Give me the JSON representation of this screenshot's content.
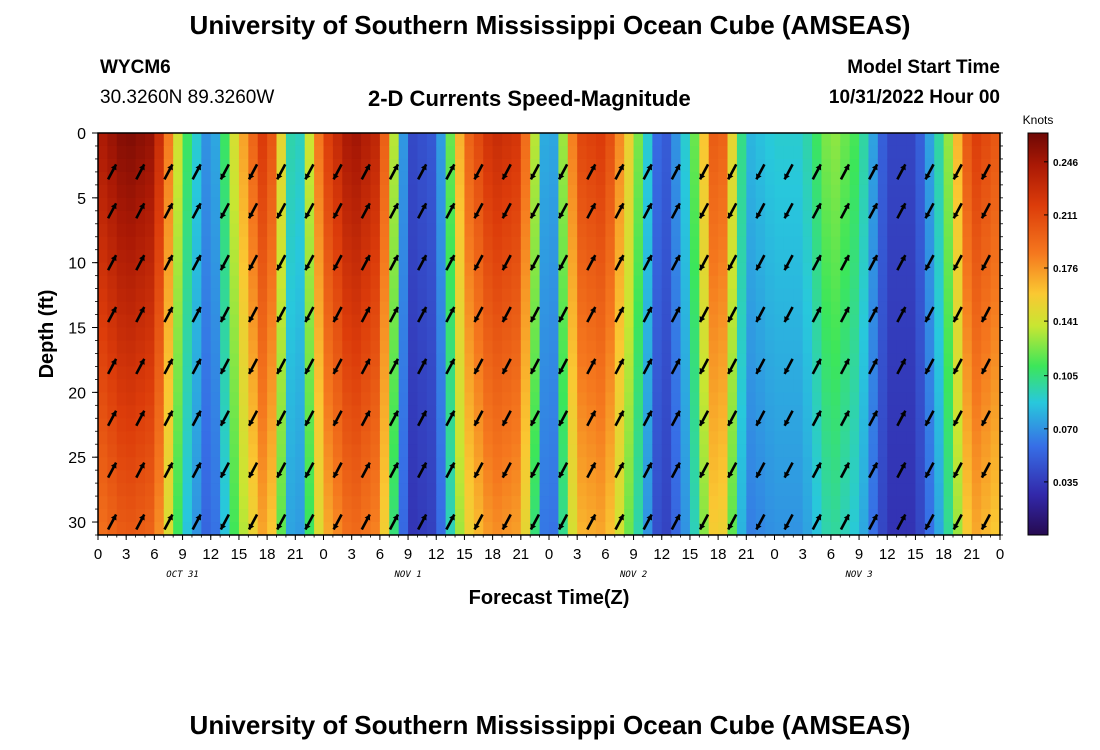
{
  "header": {
    "title": "University of Southern Mississippi Ocean Cube (AMSEAS)",
    "station_id": "WYCM6",
    "station_coords": "30.3260N  89.3260W",
    "plot_title": "2-D Currents Speed-Magnitude",
    "model_start_label": "Model Start Time",
    "model_start_value": "10/31/2022 Hour 00",
    "footer_title": "University of Southern Mississippi Ocean Cube (AMSEAS)"
  },
  "chart_data": {
    "type": "heatmap",
    "title": "2-D Currents Speed-Magnitude",
    "xlabel": "Forecast Time(Z)",
    "ylabel": "Depth (ft)",
    "x_tick_labels": [
      "0",
      "3",
      "6",
      "9",
      "12",
      "15",
      "18",
      "21",
      "0",
      "3",
      "6",
      "9",
      "12",
      "15",
      "18",
      "21",
      "0",
      "3",
      "6",
      "9",
      "12",
      "15",
      "18",
      "21",
      "0",
      "3",
      "6",
      "9",
      "12",
      "15",
      "18",
      "21",
      "0"
    ],
    "x_range_hours": [
      0,
      96
    ],
    "day_labels": [
      "OCT 31",
      "NOV 1",
      "NOV 2",
      "NOV 3"
    ],
    "y_ticks": [
      0,
      5,
      10,
      15,
      20,
      25,
      30
    ],
    "y_range_ft": [
      0,
      31
    ],
    "colorbar": {
      "label": "Knots",
      "ticks": [
        "0.246",
        "0.211",
        "0.176",
        "0.141",
        "0.105",
        "0.070",
        "0.035"
      ],
      "range": [
        0,
        0.265
      ]
    },
    "speed_by_hour_surface": [
      {
        "hour": 0,
        "speed": 0.24
      },
      {
        "hour": 3,
        "speed": 0.26
      },
      {
        "hour": 6,
        "speed": 0.25
      },
      {
        "hour": 9,
        "speed": 0.12
      },
      {
        "hour": 12,
        "speed": 0.06
      },
      {
        "hour": 15,
        "speed": 0.16
      },
      {
        "hour": 18,
        "speed": 0.23
      },
      {
        "hour": 21,
        "speed": 0.07
      },
      {
        "hour": 24,
        "speed": 0.21
      },
      {
        "hour": 27,
        "speed": 0.25
      },
      {
        "hour": 30,
        "speed": 0.23
      },
      {
        "hour": 33,
        "speed": 0.04
      },
      {
        "hour": 36,
        "speed": 0.05
      },
      {
        "hour": 39,
        "speed": 0.19
      },
      {
        "hour": 42,
        "speed": 0.23
      },
      {
        "hour": 45,
        "speed": 0.22
      },
      {
        "hour": 48,
        "speed": 0.05
      },
      {
        "hour": 51,
        "speed": 0.21
      },
      {
        "hour": 54,
        "speed": 0.22
      },
      {
        "hour": 57,
        "speed": 0.14
      },
      {
        "hour": 60,
        "speed": 0.04
      },
      {
        "hour": 63,
        "speed": 0.1
      },
      {
        "hour": 66,
        "speed": 0.22
      },
      {
        "hour": 69,
        "speed": 0.08
      },
      {
        "hour": 72,
        "speed": 0.09
      },
      {
        "hour": 75,
        "speed": 0.09
      },
      {
        "hour": 78,
        "speed": 0.13
      },
      {
        "hour": 81,
        "speed": 0.11
      },
      {
        "hour": 84,
        "speed": 0.04
      },
      {
        "hour": 87,
        "speed": 0.04
      },
      {
        "hour": 90,
        "speed": 0.11
      },
      {
        "hour": 93,
        "speed": 0.22
      },
      {
        "hour": 96,
        "speed": 0.2
      }
    ],
    "vectors": "black direction arrows every 3 forecast hours at depths 3, 6, 10, 14, 18, 22, 26, 30 ft"
  }
}
